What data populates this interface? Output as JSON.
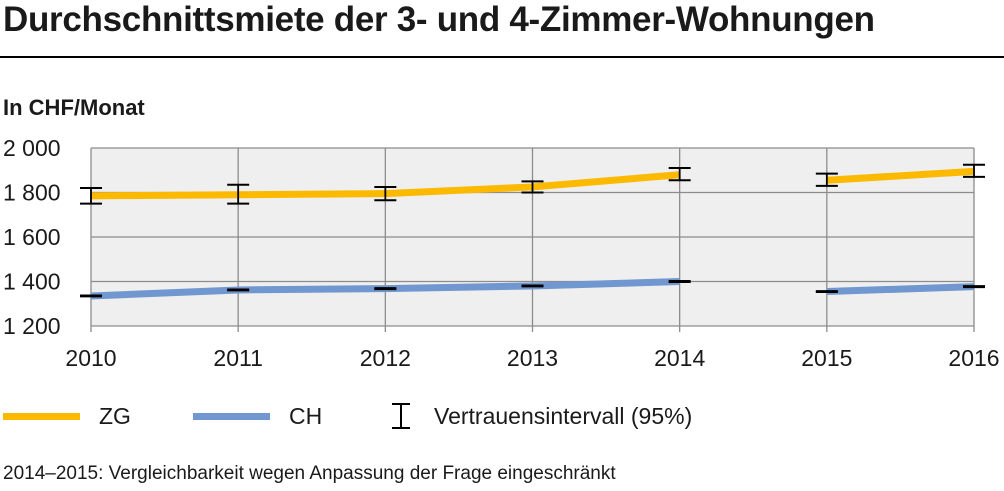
{
  "chart_data": {
    "type": "line",
    "title": "Durchschnittsmiete der 3- und 4-Zimmer-Wohnungen",
    "unit_label": "In CHF/Monat",
    "x": [
      "2010",
      "2011",
      "2012",
      "2013",
      "2014",
      "2015",
      "2016"
    ],
    "ylim": [
      1200,
      2000
    ],
    "yticks": [
      1200,
      1400,
      1600,
      1800,
      2000
    ],
    "ytick_labels": [
      "1 200",
      "1 400",
      "1 600",
      "1 800",
      "2 000"
    ],
    "grid": true,
    "series": [
      {
        "name": "ZG",
        "color": "#FBBA00",
        "segments": [
          [
            0,
            4
          ],
          [
            5,
            6
          ]
        ],
        "values": [
          1785,
          1790,
          1795,
          1825,
          1880,
          1855,
          1895
        ],
        "ci_low": [
          1750,
          1750,
          1765,
          1800,
          1855,
          1830,
          1870
        ],
        "ci_high": [
          1820,
          1835,
          1825,
          1850,
          1910,
          1885,
          1925
        ]
      },
      {
        "name": "CH",
        "color": "#7097CF",
        "segments": [
          [
            0,
            4
          ],
          [
            5,
            6
          ]
        ],
        "values": [
          1335,
          1362,
          1368,
          1380,
          1400,
          1355,
          1377
        ],
        "ci_low": [
          1333,
          1360,
          1366,
          1378,
          1398,
          1353,
          1375
        ],
        "ci_high": [
          1337,
          1364,
          1370,
          1382,
          1402,
          1357,
          1379
        ]
      }
    ],
    "legend": [
      {
        "label": "ZG",
        "kind": "line",
        "color": "#FBBA00"
      },
      {
        "label": "CH",
        "kind": "line",
        "color": "#7097CF"
      },
      {
        "label": "Vertrauensintervall (95%)",
        "kind": "errorbar"
      }
    ],
    "legend_position": "bottom",
    "footnote": "2014–2015: Vergleichbarkeit wegen Anpassung der Frage eingeschränkt"
  }
}
